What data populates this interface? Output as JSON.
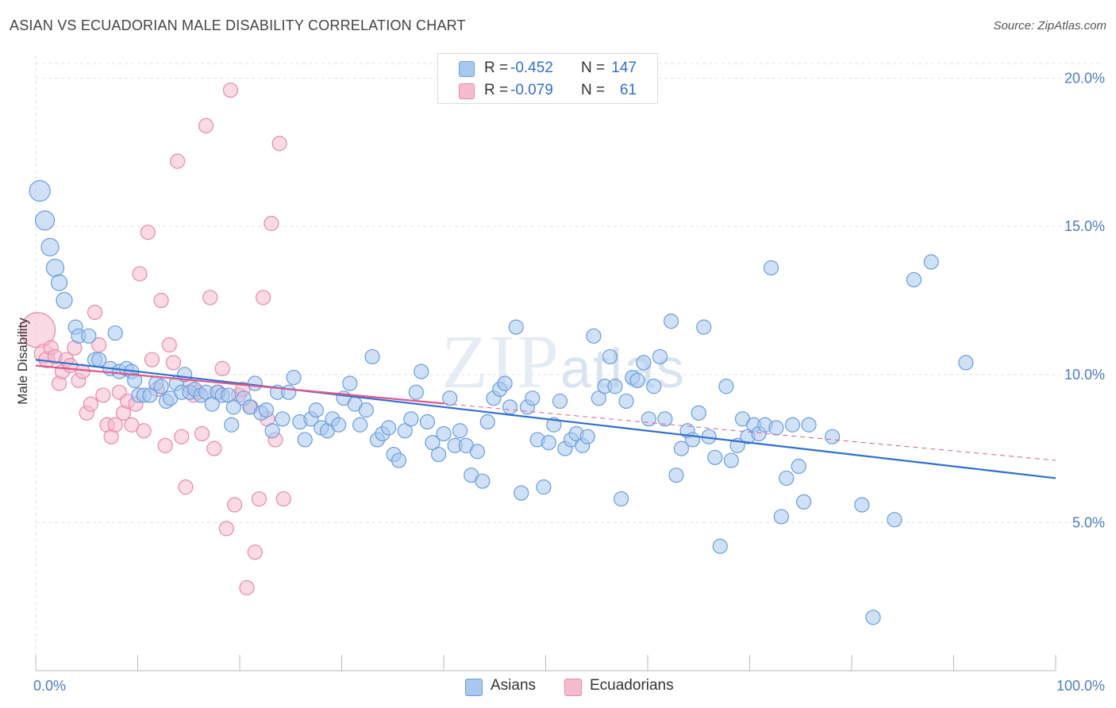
{
  "title": "ASIAN VS ECUADORIAN MALE DISABILITY CORRELATION CHART",
  "source": "Source: ZipAtlas.com",
  "watermark": {
    "zip": "ZIP",
    "atlas": "atlas"
  },
  "colors": {
    "asians_fill": "#a8c8f0",
    "asians_stroke": "#6a9ddc",
    "asians_line": "#2f6fd0",
    "ecuadorians_fill": "#f6bccd",
    "ecuadorians_stroke": "#e88aa8",
    "ecuadorians_line": "#e0588a",
    "grid": "#dde3ea",
    "tick_text": "#4a7cc7"
  },
  "stats": [
    {
      "r_label": "R =",
      "r_value": "-0.452",
      "n_label": "N =",
      "n_value": "147",
      "series": "asians"
    },
    {
      "r_label": "R =",
      "r_value": "-0.079",
      "n_label": "N =",
      "n_value": "61",
      "series": "ecuadorians"
    }
  ],
  "legend": [
    {
      "label": "Asians",
      "series": "asians"
    },
    {
      "label": "Ecuadorians",
      "series": "ecuadorians"
    }
  ],
  "chart_data": {
    "type": "scatter",
    "title": "ASIAN VS ECUADORIAN MALE DISABILITY CORRELATION CHART",
    "xlabel": "",
    "ylabel": "Male Disability",
    "xlim": [
      0,
      100
    ],
    "ylim": [
      0,
      20.5
    ],
    "x_tick_labels": [
      "0.0%",
      "100.0%"
    ],
    "y_ticks": [
      5,
      10,
      15,
      20
    ],
    "y_tick_labels": [
      "5.0%",
      "10.0%",
      "15.0%",
      "20.0%"
    ],
    "grid": true,
    "legend_position": "bottom-center",
    "series": [
      {
        "name": "Asians",
        "trend": {
          "x": [
            0,
            100
          ],
          "y": [
            10.5,
            6.5
          ],
          "dashed_from_x": null
        },
        "points": [
          [
            0.4,
            16.2,
            13
          ],
          [
            0.9,
            15.2,
            12
          ],
          [
            1.4,
            14.3,
            11
          ],
          [
            1.9,
            13.6,
            11
          ],
          [
            2.3,
            13.1,
            10
          ],
          [
            2.8,
            12.5,
            10
          ],
          [
            3.9,
            11.6,
            9
          ],
          [
            4.2,
            11.3,
            9
          ],
          [
            5.2,
            11.3,
            9
          ],
          [
            5.8,
            10.5,
            9
          ],
          [
            6.2,
            10.5,
            9
          ],
          [
            7.3,
            10.2,
            9
          ],
          [
            7.8,
            11.4,
            9
          ],
          [
            8.2,
            10.1,
            9
          ],
          [
            8.9,
            10.2,
            9
          ],
          [
            9.4,
            10.1,
            9
          ],
          [
            9.7,
            9.8,
            9
          ],
          [
            10.1,
            9.3,
            9
          ],
          [
            10.6,
            9.3,
            9
          ],
          [
            11.2,
            9.3,
            9
          ],
          [
            11.8,
            9.7,
            9
          ],
          [
            12.3,
            9.6,
            9
          ],
          [
            12.8,
            9.1,
            9
          ],
          [
            13.2,
            9.2,
            9
          ],
          [
            13.8,
            9.7,
            9
          ],
          [
            14.3,
            9.4,
            9
          ],
          [
            14.6,
            10.0,
            9
          ],
          [
            15.1,
            9.4,
            9
          ],
          [
            15.6,
            9.5,
            9
          ],
          [
            16.2,
            9.3,
            9
          ],
          [
            16.7,
            9.4,
            9
          ],
          [
            17.3,
            9.0,
            9
          ],
          [
            17.8,
            9.4,
            9
          ],
          [
            18.3,
            9.3,
            9
          ],
          [
            18.9,
            9.3,
            9
          ],
          [
            19.4,
            8.9,
            9
          ],
          [
            19.2,
            8.3,
            9
          ],
          [
            20.4,
            9.2,
            9
          ],
          [
            21.0,
            8.9,
            9
          ],
          [
            21.5,
            9.7,
            9
          ],
          [
            22.1,
            8.7,
            9
          ],
          [
            22.6,
            8.8,
            9
          ],
          [
            23.2,
            8.1,
            9
          ],
          [
            23.7,
            9.4,
            9
          ],
          [
            24.2,
            8.5,
            9
          ],
          [
            24.8,
            9.4,
            9
          ],
          [
            25.3,
            9.9,
            9
          ],
          [
            25.9,
            8.4,
            9
          ],
          [
            26.4,
            7.8,
            9
          ],
          [
            27.0,
            8.5,
            9
          ],
          [
            27.5,
            8.8,
            9
          ],
          [
            28.0,
            8.2,
            9
          ],
          [
            28.6,
            8.1,
            9
          ],
          [
            29.1,
            8.5,
            9
          ],
          [
            29.7,
            8.3,
            9
          ],
          [
            30.2,
            9.2,
            9
          ],
          [
            30.8,
            9.7,
            9
          ],
          [
            31.3,
            9.0,
            9
          ],
          [
            31.8,
            8.3,
            9
          ],
          [
            32.4,
            8.8,
            9
          ],
          [
            33.0,
            10.6,
            9
          ],
          [
            33.5,
            7.8,
            9
          ],
          [
            34.0,
            8.0,
            9
          ],
          [
            34.6,
            8.2,
            9
          ],
          [
            35.1,
            7.3,
            9
          ],
          [
            35.6,
            7.1,
            9
          ],
          [
            36.2,
            8.1,
            9
          ],
          [
            36.8,
            8.5,
            9
          ],
          [
            37.3,
            9.4,
            9
          ],
          [
            37.8,
            10.1,
            9
          ],
          [
            38.4,
            8.4,
            9
          ],
          [
            38.9,
            7.7,
            9
          ],
          [
            39.5,
            7.3,
            9
          ],
          [
            40.0,
            8.0,
            9
          ],
          [
            40.6,
            9.2,
            9
          ],
          [
            41.1,
            7.6,
            9
          ],
          [
            41.6,
            8.1,
            9
          ],
          [
            42.2,
            7.6,
            9
          ],
          [
            42.7,
            6.6,
            9
          ],
          [
            43.3,
            7.4,
            9
          ],
          [
            43.8,
            6.4,
            9
          ],
          [
            44.3,
            8.4,
            9
          ],
          [
            44.9,
            9.2,
            9
          ],
          [
            45.5,
            9.5,
            9
          ],
          [
            46.0,
            9.7,
            9
          ],
          [
            46.5,
            8.9,
            9
          ],
          [
            47.1,
            11.6,
            9
          ],
          [
            47.6,
            6.0,
            9
          ],
          [
            48.2,
            8.9,
            9
          ],
          [
            48.7,
            9.2,
            9
          ],
          [
            49.2,
            7.8,
            9
          ],
          [
            49.8,
            6.2,
            9
          ],
          [
            50.3,
            7.7,
            9
          ],
          [
            50.8,
            8.3,
            9
          ],
          [
            51.4,
            9.1,
            9
          ],
          [
            51.9,
            7.5,
            9
          ],
          [
            52.5,
            7.8,
            9
          ],
          [
            53.0,
            8.0,
            9
          ],
          [
            53.6,
            7.6,
            9
          ],
          [
            54.1,
            7.9,
            9
          ],
          [
            54.7,
            11.3,
            9
          ],
          [
            55.2,
            9.2,
            9
          ],
          [
            55.8,
            9.6,
            9
          ],
          [
            56.3,
            10.6,
            9
          ],
          [
            56.8,
            9.6,
            9
          ],
          [
            57.4,
            5.8,
            9
          ],
          [
            57.9,
            9.1,
            9
          ],
          [
            58.5,
            9.9,
            9
          ],
          [
            59.0,
            9.8,
            9
          ],
          [
            59.6,
            10.4,
            9
          ],
          [
            60.1,
            8.5,
            9
          ],
          [
            60.6,
            9.6,
            9
          ],
          [
            61.2,
            10.6,
            9
          ],
          [
            61.7,
            8.5,
            9
          ],
          [
            62.3,
            11.8,
            9
          ],
          [
            62.8,
            6.6,
            9
          ],
          [
            63.3,
            7.5,
            9
          ],
          [
            63.9,
            8.1,
            9
          ],
          [
            64.4,
            7.8,
            9
          ],
          [
            65.0,
            8.7,
            9
          ],
          [
            65.5,
            11.6,
            9
          ],
          [
            66.0,
            7.9,
            9
          ],
          [
            66.6,
            7.2,
            9
          ],
          [
            67.1,
            4.2,
            9
          ],
          [
            67.7,
            9.6,
            9
          ],
          [
            68.2,
            7.1,
            9
          ],
          [
            68.8,
            7.6,
            9
          ],
          [
            69.3,
            8.5,
            9
          ],
          [
            69.8,
            7.9,
            9
          ],
          [
            70.4,
            8.3,
            9
          ],
          [
            70.9,
            8.0,
            9
          ],
          [
            71.5,
            8.3,
            9
          ],
          [
            72.1,
            13.6,
            9
          ],
          [
            72.6,
            8.2,
            9
          ],
          [
            73.1,
            5.2,
            9
          ],
          [
            73.6,
            6.5,
            9
          ],
          [
            74.2,
            8.3,
            9
          ],
          [
            74.8,
            6.9,
            9
          ],
          [
            75.3,
            5.7,
            9
          ],
          [
            75.8,
            8.3,
            9
          ],
          [
            78.1,
            7.9,
            9
          ],
          [
            81.0,
            5.6,
            9
          ],
          [
            82.1,
            1.8,
            9
          ],
          [
            84.2,
            5.1,
            9
          ],
          [
            86.1,
            13.2,
            9
          ],
          [
            87.8,
            13.8,
            9
          ],
          [
            91.2,
            10.4,
            9
          ]
        ]
      },
      {
        "name": "Ecuadorians",
        "trend": {
          "x": [
            0,
            100
          ],
          "y": [
            10.3,
            7.1
          ],
          "dashed_from_x": 40
        },
        "points": [
          [
            0.2,
            11.5,
            22
          ],
          [
            0.8,
            10.7,
            12
          ],
          [
            1.1,
            10.5,
            10
          ],
          [
            1.5,
            10.9,
            9
          ],
          [
            1.9,
            10.6,
            9
          ],
          [
            2.3,
            9.7,
            9
          ],
          [
            2.6,
            10.1,
            9
          ],
          [
            3.0,
            10.5,
            9
          ],
          [
            3.4,
            10.3,
            9
          ],
          [
            3.8,
            10.9,
            9
          ],
          [
            4.2,
            9.8,
            9
          ],
          [
            4.6,
            10.1,
            9
          ],
          [
            5.0,
            8.7,
            9
          ],
          [
            5.4,
            9.0,
            9
          ],
          [
            5.8,
            12.1,
            9
          ],
          [
            6.2,
            11.0,
            9
          ],
          [
            6.6,
            9.3,
            9
          ],
          [
            7.0,
            8.3,
            9
          ],
          [
            7.4,
            7.9,
            9
          ],
          [
            7.8,
            8.3,
            9
          ],
          [
            8.2,
            9.4,
            9
          ],
          [
            8.6,
            8.7,
            9
          ],
          [
            9.0,
            9.1,
            9
          ],
          [
            9.4,
            8.3,
            9
          ],
          [
            9.8,
            9.0,
            9
          ],
          [
            10.2,
            13.4,
            9
          ],
          [
            10.6,
            8.1,
            9
          ],
          [
            11.0,
            14.8,
            9
          ],
          [
            11.4,
            10.5,
            9
          ],
          [
            11.9,
            9.5,
            9
          ],
          [
            12.3,
            12.5,
            9
          ],
          [
            12.7,
            7.6,
            9
          ],
          [
            13.1,
            11.0,
            9
          ],
          [
            13.5,
            10.4,
            9
          ],
          [
            13.9,
            17.2,
            9
          ],
          [
            14.3,
            7.9,
            9
          ],
          [
            14.7,
            6.2,
            9
          ],
          [
            15.1,
            9.6,
            9
          ],
          [
            15.5,
            9.3,
            9
          ],
          [
            15.9,
            9.4,
            9
          ],
          [
            16.3,
            8.0,
            9
          ],
          [
            16.7,
            18.4,
            9
          ],
          [
            17.1,
            12.6,
            9
          ],
          [
            17.5,
            7.5,
            9
          ],
          [
            17.9,
            9.4,
            9
          ],
          [
            18.3,
            10.2,
            9
          ],
          [
            18.7,
            4.8,
            9
          ],
          [
            19.1,
            19.6,
            9
          ],
          [
            19.5,
            5.6,
            9
          ],
          [
            19.9,
            9.3,
            9
          ],
          [
            20.3,
            9.5,
            9
          ],
          [
            20.7,
            2.8,
            9
          ],
          [
            21.1,
            8.9,
            9
          ],
          [
            21.5,
            4.0,
            9
          ],
          [
            21.9,
            5.8,
            9
          ],
          [
            22.3,
            12.6,
            9
          ],
          [
            22.7,
            8.5,
            9
          ],
          [
            23.1,
            15.1,
            9
          ],
          [
            23.5,
            7.8,
            9
          ],
          [
            23.9,
            17.8,
            9
          ],
          [
            24.3,
            5.8,
            9
          ]
        ]
      }
    ]
  }
}
